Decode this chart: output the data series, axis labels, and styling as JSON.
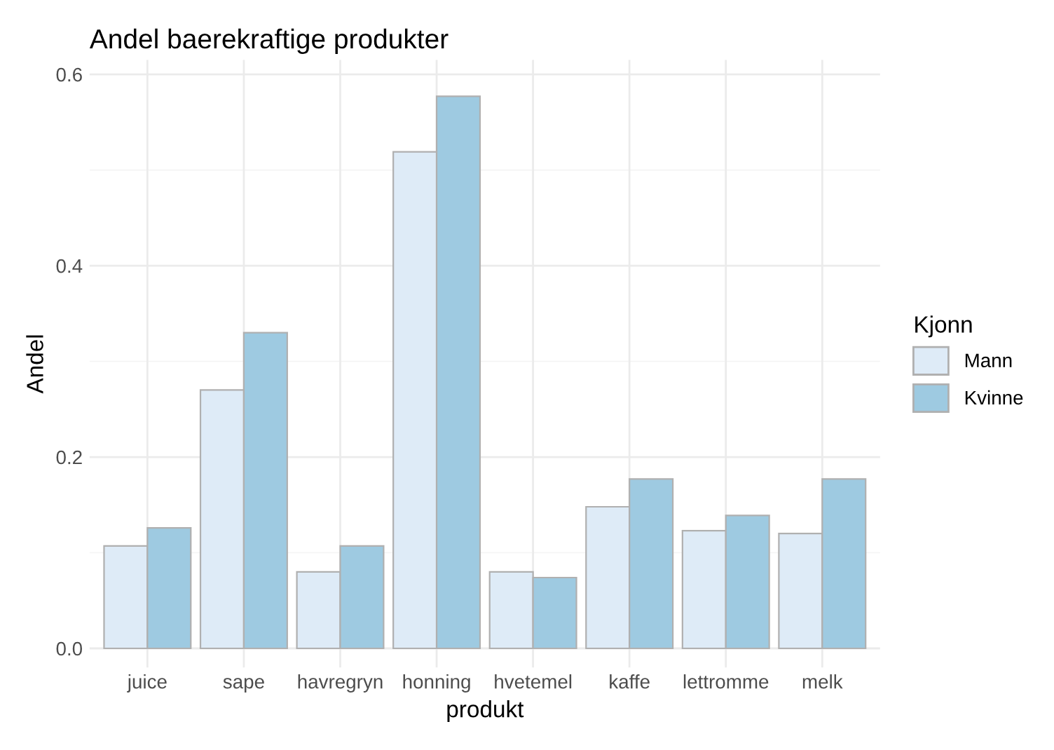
{
  "chart_data": {
    "type": "bar",
    "title": "Andel baerekraftige produkter",
    "xlabel": "produkt",
    "ylabel": "Andel",
    "legend_title": "Kjonn",
    "categories": [
      "juice",
      "sape",
      "havregryn",
      "honning",
      "hvetemel",
      "kaffe",
      "lettromme",
      "melk"
    ],
    "series": [
      {
        "name": "Mann",
        "color": "#deebf7",
        "values": [
          0.107,
          0.27,
          0.08,
          0.519,
          0.08,
          0.148,
          0.123,
          0.12
        ]
      },
      {
        "name": "Kvinne",
        "color": "#9ecae1",
        "values": [
          0.126,
          0.33,
          0.107,
          0.577,
          0.074,
          0.177,
          0.139,
          0.177
        ]
      }
    ],
    "ylim": [
      -0.02,
      0.615
    ],
    "yticks": [
      {
        "value": 0,
        "label": "0.0"
      },
      {
        "value": 0.2,
        "label": "0.2"
      },
      {
        "value": 0.4,
        "label": "0.4"
      },
      {
        "value": 0.6,
        "label": "0.6"
      }
    ],
    "grid": true,
    "legend": "right"
  }
}
